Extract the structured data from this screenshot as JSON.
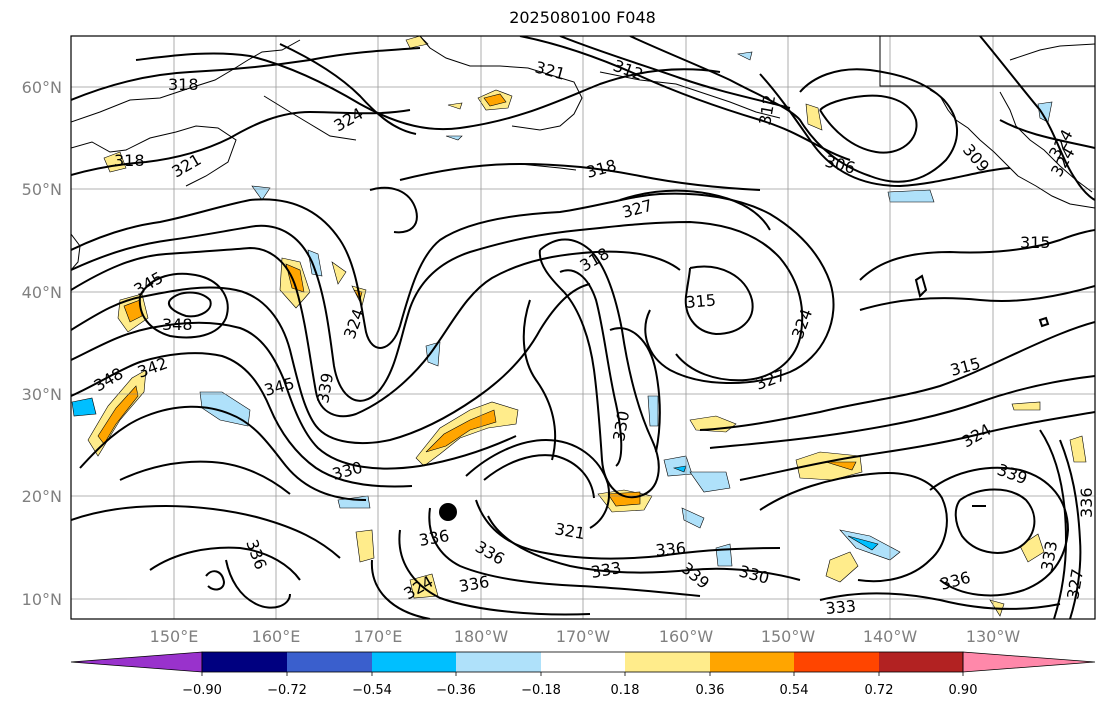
{
  "title": "2025080100 F048",
  "map": {
    "lat_labels": [
      "60°N",
      "50°N",
      "40°N",
      "30°N",
      "20°N",
      "10°N"
    ],
    "lon_labels": [
      "150°E",
      "160°E",
      "170°E",
      "180°W",
      "170°W",
      "160°W",
      "150°W",
      "140°W",
      "130°W"
    ],
    "contour_labels": [
      "318",
      "321",
      "324",
      "318",
      "321",
      "318",
      "312",
      "312",
      "306",
      "309",
      "324",
      "327",
      "318",
      "315",
      "345",
      "348",
      "348",
      "342",
      "345",
      "339",
      "324",
      "324",
      "315",
      "315",
      "327",
      "330",
      "330",
      "324",
      "339",
      "336",
      "336",
      "336",
      "336",
      "321",
      "336",
      "333",
      "339",
      "330",
      "336",
      "333",
      "333",
      "327",
      "336",
      "324",
      "324"
    ],
    "black_dot": "storm-center-marker"
  },
  "colorbar": {
    "ticks": [
      "−0.90",
      "−0.72",
      "−0.54",
      "−0.36",
      "−0.18",
      "0.18",
      "0.36",
      "0.54",
      "0.72",
      "0.90"
    ],
    "colors": [
      "#9932cc",
      "#000080",
      "#3a5fcd",
      "#00bfff",
      "#afe1fa",
      "#ffffff",
      "#ffec8b",
      "#ffa500",
      "#ff4500",
      "#b22222",
      "#ff88aa"
    ]
  }
}
